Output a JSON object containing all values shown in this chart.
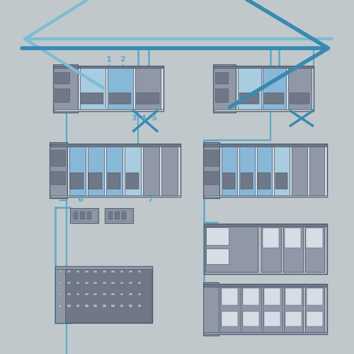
{
  "bg_color": "#c0c8cc",
  "bus_color_light": "#7bbdd4",
  "bus_color_dark": "#3a8ab0",
  "line_color": "#5aaac8",
  "device_outline": "#445566",
  "device_fill_blue": "#88b8d8",
  "device_fill_blue2": "#a8cce0",
  "device_fill_gray": "#9098a8",
  "device_fill_mid": "#b0b8c0",
  "device_fill_frame": "#d8dce4",
  "device_fill_dark": "#707888",
  "device_fill_white": "#e8eef2",
  "labels_12": {
    "1": [
      0.175,
      0.845
    ],
    "2": [
      0.205,
      0.845
    ]
  },
  "labels_345": {
    "3": [
      0.245,
      0.688
    ],
    "4": [
      0.262,
      0.688
    ],
    "5": [
      0.279,
      0.688
    ]
  },
  "labels_67": {
    "6": [
      0.165,
      0.508
    ],
    "7": [
      0.288,
      0.508
    ]
  }
}
